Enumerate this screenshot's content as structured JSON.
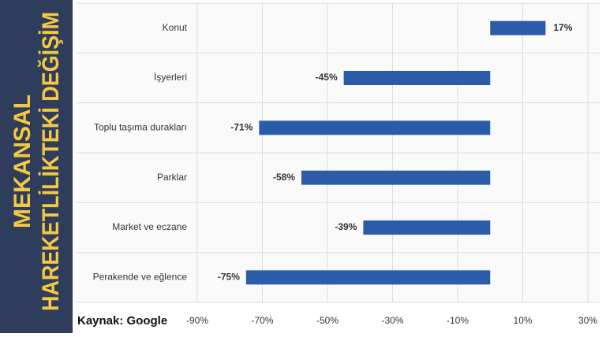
{
  "chart_data": {
    "type": "bar",
    "orientation": "horizontal",
    "title_lines": [
      "MEKANSAL",
      "HAREKETLİLİKTEKİ DEĞİŞİM"
    ],
    "source": "Kaynak: Google",
    "categories": [
      "Konut",
      "İşyerleri",
      "Toplu taşıma durakları",
      "Parklar",
      "Market ve eczane",
      "Perakende ve eğlence"
    ],
    "values": [
      17,
      -45,
      -71,
      -58,
      -39,
      -75
    ],
    "value_labels": [
      "17%",
      "-45%",
      "-71%",
      "-58%",
      "-39%",
      "-75%"
    ],
    "color": "#2a5caa",
    "xlim": [
      -90,
      30
    ],
    "xticks": [
      {
        "value": -90,
        "label": "-90%"
      },
      {
        "value": -70,
        "label": "-70%"
      },
      {
        "value": -50,
        "label": "-50%"
      },
      {
        "value": -30,
        "label": "-30%"
      },
      {
        "value": -10,
        "label": "-10%"
      },
      {
        "value": 10,
        "label": "10%"
      },
      {
        "value": 30,
        "label": "30%"
      }
    ],
    "grid": true
  }
}
